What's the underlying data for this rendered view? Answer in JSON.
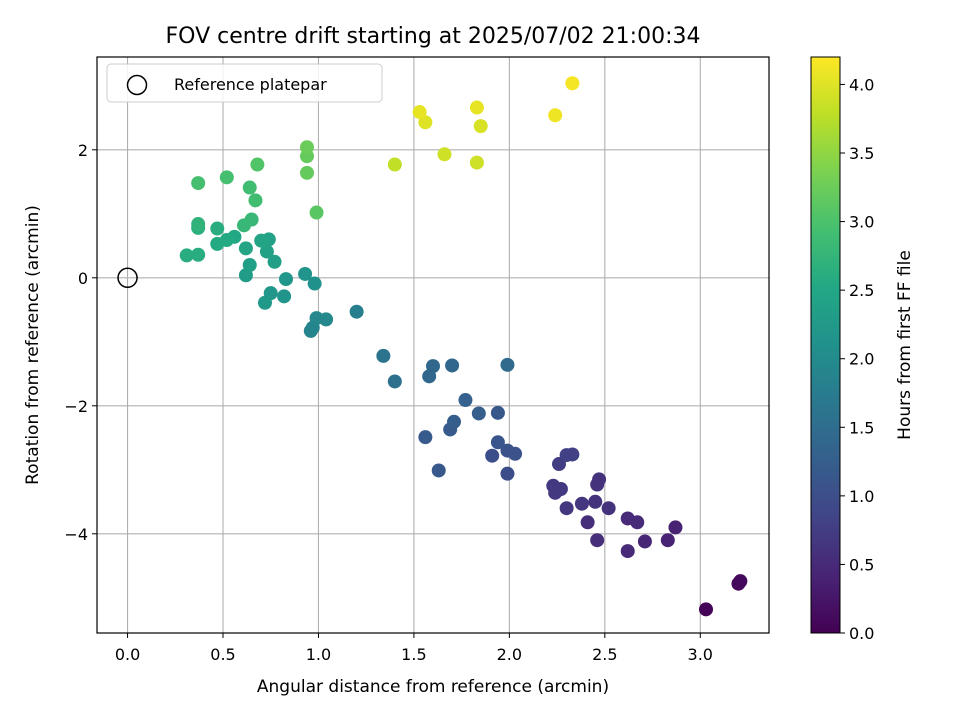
{
  "chart_data": {
    "type": "scatter",
    "title": "FOV centre drift starting at 2025/07/02 21:00:34",
    "xlabel": "Angular distance from reference (arcmin)",
    "ylabel": "Rotation from reference (arcmin)",
    "xlim": [
      -0.16,
      3.36
    ],
    "ylim": [
      -5.55,
      3.45
    ],
    "x_ticks": [
      0.0,
      0.5,
      1.0,
      1.5,
      2.0,
      2.5,
      3.0
    ],
    "x_tick_labels": [
      "0.0",
      "0.5",
      "1.0",
      "1.5",
      "2.0",
      "2.5",
      "3.0"
    ],
    "y_ticks": [
      -4,
      -2,
      0,
      2
    ],
    "y_tick_labels": [
      "−4",
      "−2",
      "0",
      "2"
    ],
    "grid": true,
    "legend": {
      "position": "top-left",
      "label": "Reference platepar"
    },
    "reference_point": {
      "x": 0.0,
      "y": 0.0
    },
    "colorbar": {
      "label": "Hours from first FF file",
      "min": 0.0,
      "max": 4.2,
      "colormap": "viridis",
      "ticks": [
        0.0,
        0.5,
        1.0,
        1.5,
        2.0,
        2.5,
        3.0,
        3.5,
        4.0
      ],
      "tick_labels": [
        "0.0",
        "0.5",
        "1.0",
        "1.5",
        "2.0",
        "2.5",
        "3.0",
        "3.5",
        "4.0"
      ]
    },
    "points": [
      [
        3.03,
        -5.18,
        0.05
      ],
      [
        3.2,
        -4.78,
        0.08
      ],
      [
        3.21,
        -4.74,
        0.1
      ],
      [
        2.83,
        -4.1,
        0.4
      ],
      [
        2.87,
        -3.9,
        0.4
      ],
      [
        2.71,
        -4.12,
        0.45
      ],
      [
        2.62,
        -4.27,
        0.5
      ],
      [
        2.67,
        -3.82,
        0.5
      ],
      [
        2.62,
        -3.76,
        0.5
      ],
      [
        2.46,
        -4.1,
        0.55
      ],
      [
        2.41,
        -3.82,
        0.55
      ],
      [
        2.52,
        -3.6,
        0.6
      ],
      [
        2.45,
        -3.5,
        0.6
      ],
      [
        2.47,
        -3.15,
        0.6
      ],
      [
        2.46,
        -3.23,
        0.6
      ],
      [
        2.38,
        -3.53,
        0.65
      ],
      [
        2.3,
        -3.6,
        0.65
      ],
      [
        2.23,
        -3.25,
        0.7
      ],
      [
        2.24,
        -3.36,
        0.7
      ],
      [
        2.27,
        -3.3,
        0.7
      ],
      [
        2.26,
        -2.91,
        0.75
      ],
      [
        2.3,
        -2.77,
        0.8
      ],
      [
        2.33,
        -2.76,
        0.8
      ],
      [
        1.91,
        -2.78,
        1.0
      ],
      [
        1.99,
        -3.06,
        1.0
      ],
      [
        1.99,
        -2.7,
        1.05
      ],
      [
        2.03,
        -2.75,
        1.05
      ],
      [
        1.94,
        -2.57,
        1.1
      ],
      [
        1.94,
        -2.11,
        1.15
      ],
      [
        1.63,
        -3.01,
        1.15
      ],
      [
        1.56,
        -2.49,
        1.2
      ],
      [
        1.69,
        -2.37,
        1.2
      ],
      [
        1.71,
        -2.25,
        1.25
      ],
      [
        1.84,
        -2.12,
        1.25
      ],
      [
        1.77,
        -1.91,
        1.3
      ],
      [
        1.7,
        -1.37,
        1.4
      ],
      [
        1.6,
        -1.38,
        1.4
      ],
      [
        1.58,
        -1.54,
        1.4
      ],
      [
        1.99,
        -1.36,
        1.45
      ],
      [
        1.4,
        -1.62,
        1.55
      ],
      [
        1.34,
        -1.22,
        1.6
      ],
      [
        1.2,
        -0.53,
        1.8
      ],
      [
        0.96,
        -0.83,
        1.9
      ],
      [
        0.97,
        -0.78,
        1.9
      ],
      [
        1.04,
        -0.65,
        1.95
      ],
      [
        0.99,
        -0.63,
        1.95
      ],
      [
        0.98,
        -0.09,
        2.1
      ],
      [
        0.93,
        0.06,
        2.15
      ],
      [
        0.82,
        -0.29,
        2.15
      ],
      [
        0.83,
        -0.02,
        2.2
      ],
      [
        0.75,
        -0.24,
        2.2
      ],
      [
        0.72,
        -0.39,
        2.25
      ],
      [
        0.62,
        0.04,
        2.3
      ],
      [
        0.64,
        0.2,
        2.35
      ],
      [
        0.77,
        0.25,
        2.35
      ],
      [
        0.73,
        0.41,
        2.4
      ],
      [
        0.74,
        0.6,
        2.4
      ],
      [
        0.7,
        0.58,
        2.45
      ],
      [
        0.62,
        0.46,
        2.45
      ],
      [
        0.56,
        0.64,
        2.5
      ],
      [
        0.52,
        0.59,
        2.55
      ],
      [
        0.47,
        0.53,
        2.55
      ],
      [
        0.47,
        0.77,
        2.6
      ],
      [
        0.37,
        0.36,
        2.6
      ],
      [
        0.31,
        0.35,
        2.6
      ],
      [
        0.37,
        0.78,
        2.65
      ],
      [
        0.37,
        0.84,
        2.7
      ],
      [
        0.61,
        0.82,
        2.8
      ],
      [
        0.65,
        0.91,
        2.8
      ],
      [
        0.67,
        1.21,
        2.9
      ],
      [
        0.64,
        1.41,
        2.9
      ],
      [
        0.37,
        1.48,
        2.95
      ],
      [
        0.52,
        1.57,
        2.95
      ],
      [
        0.68,
        1.77,
        3.05
      ],
      [
        0.99,
        1.02,
        3.1
      ],
      [
        0.94,
        1.64,
        3.2
      ],
      [
        0.94,
        1.9,
        3.2
      ],
      [
        0.94,
        2.04,
        3.25
      ],
      [
        1.4,
        1.77,
        3.8
      ],
      [
        1.66,
        1.93,
        3.9
      ],
      [
        1.83,
        1.8,
        3.9
      ],
      [
        1.85,
        2.37,
        3.95
      ],
      [
        1.56,
        2.43,
        4.0
      ],
      [
        1.53,
        2.59,
        4.05
      ],
      [
        1.83,
        2.66,
        4.05
      ],
      [
        2.24,
        2.54,
        4.1
      ],
      [
        2.33,
        3.04,
        4.15
      ]
    ]
  }
}
